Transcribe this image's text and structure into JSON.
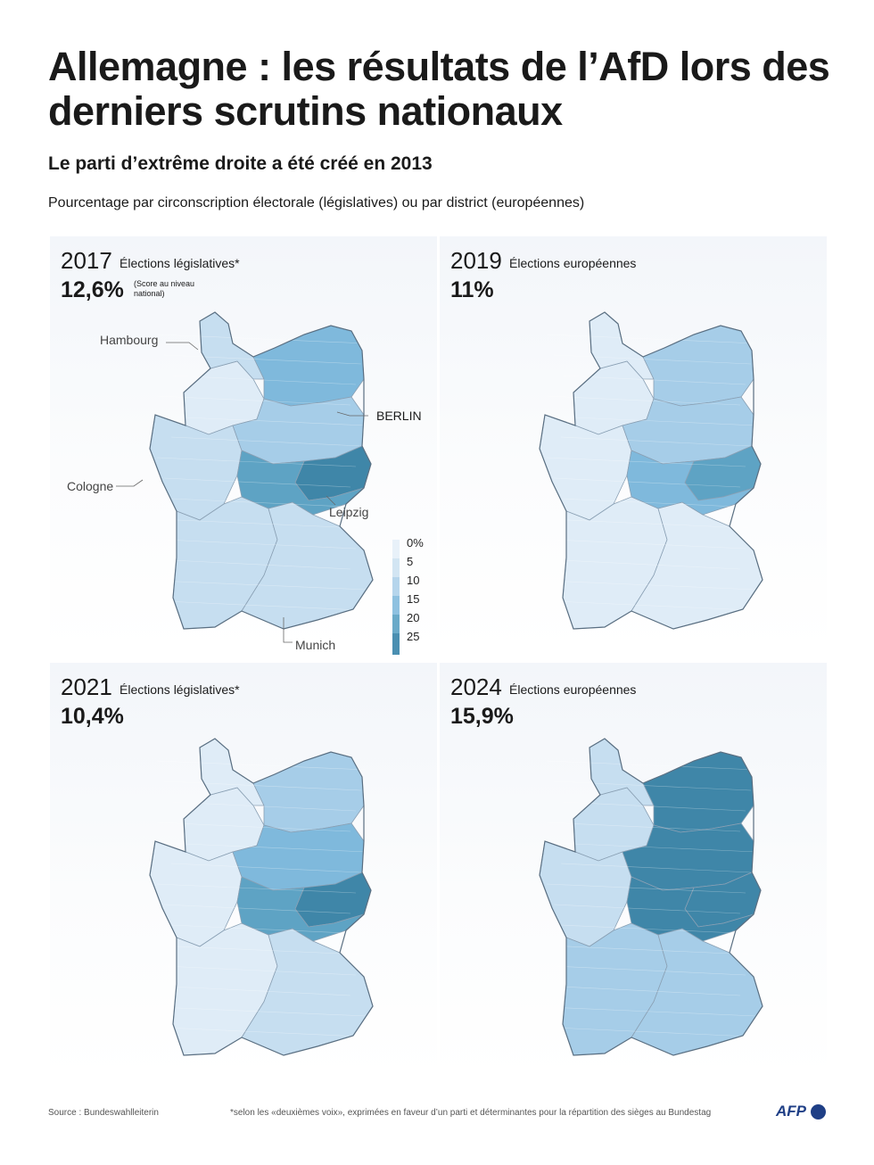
{
  "title": "Allemagne : les résultats de l’AfD lors des derniers scrutins nationaux",
  "subtitle": "Le parti d’extrême droite a été créé en 2013",
  "description": "Pourcentage par circonscription électorale (législatives) ou par district (européennes)",
  "panels": [
    {
      "year": "2017",
      "election": "Élections législatives*",
      "national_score": "12,6%",
      "national_note": "(Score au niveau national)",
      "region_levels": {
        "west": 1,
        "north": 1,
        "northwest": 0,
        "south": 1,
        "southeast": 1,
        "east_north": 3,
        "east_mid": 2,
        "east_south": 4,
        "east_core": 5
      }
    },
    {
      "year": "2019",
      "election": "Élections européennes",
      "national_score": "11%",
      "region_levels": {
        "west": 0,
        "north": 0,
        "northwest": 0,
        "south": 0,
        "southeast": 0,
        "east_north": 2,
        "east_mid": 2,
        "east_south": 3,
        "east_core": 4
      }
    },
    {
      "year": "2021",
      "election": "Élections législatives*",
      "national_score": "10,4%",
      "region_levels": {
        "west": 0,
        "north": 0,
        "northwest": 0,
        "south": 0,
        "southeast": 1,
        "east_north": 2,
        "east_mid": 3,
        "east_south": 4,
        "east_core": 5
      }
    },
    {
      "year": "2024",
      "election": "Élections européennes",
      "national_score": "15,9%",
      "region_levels": {
        "west": 1,
        "north": 1,
        "northwest": 1,
        "south": 2,
        "southeast": 2,
        "east_north": 5,
        "east_mid": 5,
        "east_south": 5,
        "east_core": 5
      }
    }
  ],
  "cities": {
    "hamburg": "Hambourg",
    "berlin": "BERLIN",
    "cologne": "Cologne",
    "leipzig": "Leipzig",
    "munich": "Munich"
  },
  "legend": {
    "labels": [
      "0%",
      "5",
      "10",
      "15",
      "20",
      "25"
    ],
    "colors": [
      "#e8f1f9",
      "#d2e5f3",
      "#b5d5ec",
      "#8ec1e0",
      "#6aaac9",
      "#4a8fb1"
    ]
  },
  "map_colors": [
    "#dfecf7",
    "#c6def0",
    "#a6cde8",
    "#7fb9dc",
    "#5ea3c4",
    "#3f86a8"
  ],
  "footer": {
    "source": "Source : Bundeswahlleiterin",
    "note": "*selon les «deuxièmes voix», exprimées en faveur d’un parti et déterminantes pour la répartition des sièges au Bundestag",
    "logo": "AFP"
  }
}
